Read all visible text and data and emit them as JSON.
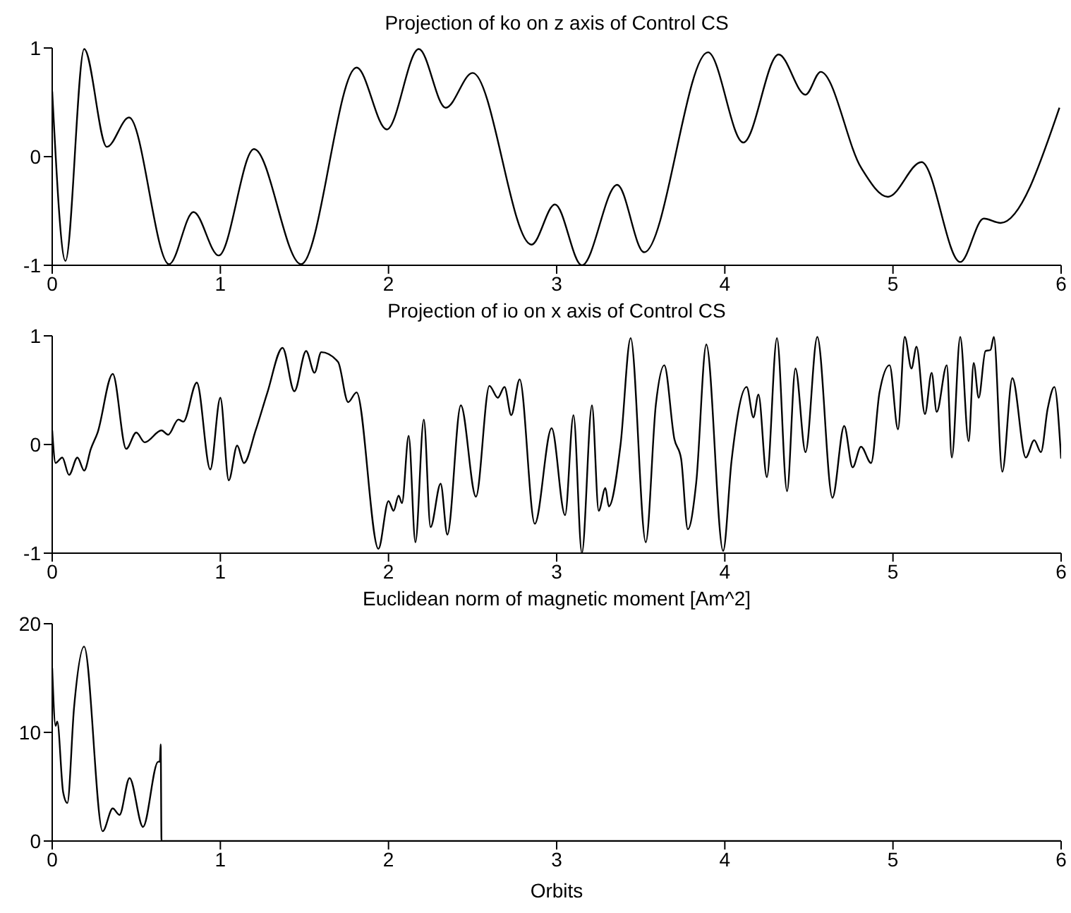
{
  "chart_data": [
    {
      "type": "line",
      "title": "Projection of ko on z axis of Control CS",
      "xlim": [
        0,
        6
      ],
      "xticks": [
        0,
        1,
        2,
        3,
        4,
        5,
        6
      ],
      "ylim": [
        -1,
        1
      ],
      "yticks": [
        -1,
        0,
        1
      ],
      "color": "#000000",
      "x": [
        0,
        0.079,
        0.19,
        0.325,
        0.457,
        0.695,
        0.84,
        0.99,
        1.2,
        1.48,
        1.81,
        1.99,
        2.18,
        2.34,
        2.5,
        2.85,
        2.99,
        3.15,
        3.36,
        3.52,
        3.9,
        4.11,
        4.32,
        4.48,
        4.57,
        4.81,
        4.97,
        5.17,
        5.4,
        5.54,
        5.64,
        5.99
      ],
      "values": [
        0.6,
        -0.96,
        0.99,
        0.09,
        0.36,
        -0.99,
        -0.51,
        -0.91,
        0.07,
        -0.99,
        0.82,
        0.25,
        0.99,
        0.45,
        0.77,
        -0.81,
        -0.44,
        -1.0,
        -0.26,
        -0.88,
        0.96,
        0.13,
        0.94,
        0.57,
        0.78,
        -0.1,
        -0.37,
        -0.05,
        -0.97,
        -0.57,
        -0.61,
        0.45
      ]
    },
    {
      "type": "line",
      "title": "Projection of io on x axis of Control CS",
      "xlim": [
        0,
        6
      ],
      "xticks": [
        0,
        1,
        2,
        3,
        4,
        5,
        6
      ],
      "ylim": [
        -1,
        1
      ],
      "yticks": [
        -1,
        0,
        1
      ],
      "color": "#000000",
      "x": [
        0,
        0.02,
        0.06,
        0.1,
        0.15,
        0.19,
        0.23,
        0.27,
        0.36,
        0.44,
        0.5,
        0.55,
        0.65,
        0.69,
        0.75,
        0.78,
        0.86,
        0.94,
        1.0,
        1.05,
        1.1,
        1.14,
        1.21,
        1.28,
        1.37,
        1.44,
        1.51,
        1.56,
        1.6,
        1.7,
        1.76,
        1.81,
        1.94,
        2.0,
        2.03,
        2.06,
        2.08,
        2.12,
        2.16,
        2.21,
        2.25,
        2.31,
        2.35,
        2.43,
        2.52,
        2.6,
        2.65,
        2.69,
        2.73,
        2.78,
        2.87,
        2.97,
        3.05,
        3.1,
        3.15,
        3.21,
        3.25,
        3.29,
        3.31,
        3.38,
        3.44,
        3.53,
        3.59,
        3.64,
        3.7,
        3.74,
        3.78,
        3.83,
        3.89,
        3.99,
        4.04,
        4.13,
        4.17,
        4.2,
        4.25,
        4.31,
        4.37,
        4.42,
        4.48,
        4.55,
        4.64,
        4.71,
        4.76,
        4.81,
        4.87,
        4.92,
        4.98,
        5.03,
        5.07,
        5.11,
        5.14,
        5.19,
        5.23,
        5.26,
        5.32,
        5.35,
        5.4,
        5.45,
        5.48,
        5.51,
        5.55,
        5.58,
        5.6,
        5.65,
        5.71,
        5.79,
        5.84,
        5.88,
        5.92,
        5.96,
        6.0
      ],
      "values": [
        0.13,
        -0.17,
        -0.12,
        -0.28,
        -0.12,
        -0.24,
        -0.04,
        0.11,
        0.65,
        -0.04,
        0.11,
        0.02,
        0.13,
        0.09,
        0.23,
        0.21,
        0.57,
        -0.23,
        0.43,
        -0.33,
        -0.01,
        -0.17,
        0.13,
        0.48,
        0.89,
        0.49,
        0.86,
        0.66,
        0.85,
        0.76,
        0.39,
        0.48,
        -0.96,
        -0.52,
        -0.61,
        -0.47,
        -0.54,
        0.08,
        -0.9,
        0.23,
        -0.76,
        -0.36,
        -0.83,
        0.36,
        -0.48,
        0.54,
        0.43,
        0.53,
        0.27,
        0.6,
        -0.73,
        0.15,
        -0.65,
        0.27,
        -1.0,
        0.36,
        -0.61,
        -0.4,
        -0.57,
        0.0,
        0.98,
        -0.9,
        0.37,
        0.73,
        0.05,
        -0.13,
        -0.78,
        -0.35,
        0.92,
        -0.98,
        -0.15,
        0.53,
        0.25,
        0.46,
        -0.3,
        0.98,
        -0.43,
        0.7,
        -0.07,
        0.99,
        -0.49,
        0.17,
        -0.21,
        -0.02,
        -0.17,
        0.48,
        0.73,
        0.14,
        0.99,
        0.7,
        0.9,
        0.28,
        0.66,
        0.3,
        0.73,
        -0.12,
        0.99,
        0.03,
        0.75,
        0.43,
        0.86,
        0.87,
        0.99,
        -0.25,
        0.61,
        -0.12,
        0.04,
        -0.07,
        0.33,
        0.53,
        -0.13
      ]
    },
    {
      "type": "line",
      "title": "Euclidean norm of magnetic moment [Am^2]",
      "xlabel": "Orbits",
      "xlim": [
        0,
        6
      ],
      "xticks": [
        0,
        1,
        2,
        3,
        4,
        5,
        6
      ],
      "ylim": [
        0,
        20
      ],
      "yticks": [
        0,
        10,
        20
      ],
      "color": "#000000",
      "x": [
        0,
        0.02,
        0.03,
        0.065,
        0.09,
        0.13,
        0.19,
        0.3,
        0.36,
        0.4,
        0.46,
        0.54,
        0.63,
        0.64,
        0.645,
        0.65,
        6
      ],
      "values": [
        15.9,
        10.6,
        11.0,
        4.5,
        3.5,
        12.3,
        17.9,
        0.9,
        3.0,
        2.4,
        5.8,
        1.3,
        7.3,
        7.3,
        8.9,
        0,
        0
      ]
    }
  ]
}
